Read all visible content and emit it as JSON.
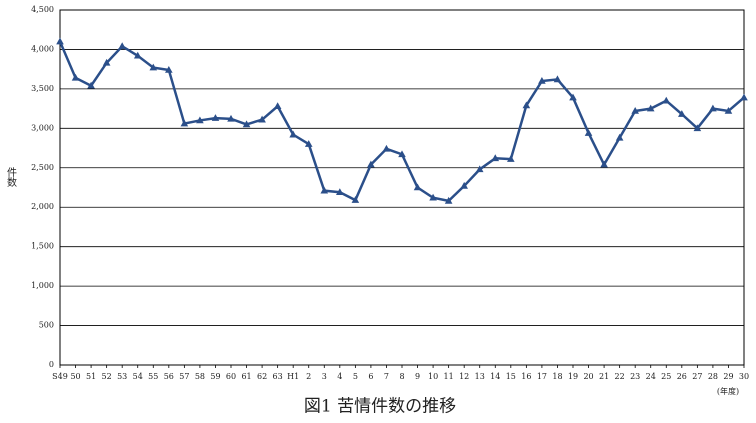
{
  "chart_data": {
    "type": "line",
    "title": "図1 苦情件数の推移",
    "y_label": "件数",
    "x_unit": "(年度)",
    "categories": [
      "S49",
      "50",
      "51",
      "52",
      "53",
      "54",
      "55",
      "56",
      "57",
      "58",
      "59",
      "60",
      "61",
      "62",
      "63",
      "H1",
      "2",
      "3",
      "4",
      "5",
      "6",
      "7",
      "8",
      "9",
      "10",
      "11",
      "12",
      "13",
      "14",
      "15",
      "16",
      "17",
      "18",
      "19",
      "20",
      "21",
      "22",
      "23",
      "24",
      "25",
      "26",
      "27",
      "28",
      "29",
      "30"
    ],
    "series": [
      {
        "name": "苦情件数",
        "color": "#2b4f8a",
        "values": [
          4100,
          3640,
          3540,
          3830,
          4040,
          3920,
          3770,
          3740,
          3060,
          3100,
          3130,
          3120,
          3050,
          3110,
          3280,
          2920,
          2800,
          2210,
          2190,
          2090,
          2540,
          2740,
          2670,
          2250,
          2120,
          2080,
          2270,
          2480,
          2620,
          2610,
          3290,
          3600,
          3620,
          3390,
          2940,
          2540,
          2880,
          3220,
          3250,
          3350,
          3180,
          3000,
          3250,
          3220,
          3390
        ]
      }
    ],
    "ylim": [
      0,
      4500
    ],
    "yticks": [
      0,
      500,
      {
        "value": 1000,
        "label": "1,000"
      },
      {
        "value": 1500,
        "label": "1,500"
      },
      {
        "value": 2000,
        "label": "2,000"
      },
      {
        "value": 2500,
        "label": "2,500"
      },
      {
        "value": 3000,
        "label": "3,000"
      },
      {
        "value": 3500,
        "label": "3,500"
      },
      {
        "value": 4000,
        "label": "4,000"
      },
      {
        "value": 4500,
        "label": "4,500"
      }
    ],
    "grid": true
  }
}
